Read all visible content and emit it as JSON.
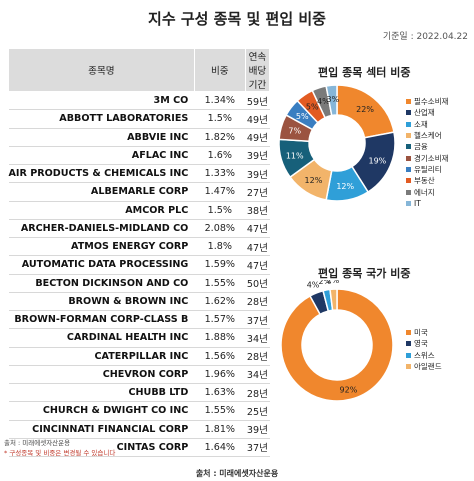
{
  "title": "지수 구성 종목 및 편입 비중",
  "date": "기준일 : 2022.04.22",
  "table": {
    "headers": {
      "name": "종목명",
      "weight": "비중",
      "years_line1": "연속",
      "years_line2": "배당 기간"
    },
    "rows": [
      {
        "name": "3M CO",
        "weight": "1.34%",
        "years": "59년"
      },
      {
        "name": "ABBOTT LABORATORIES",
        "weight": "1.5%",
        "years": "49년"
      },
      {
        "name": "ABBVIE INC",
        "weight": "1.82%",
        "years": "49년"
      },
      {
        "name": "AFLAC INC",
        "weight": "1.6%",
        "years": "39년"
      },
      {
        "name": "AIR PRODUCTS & CHEMICALS INC",
        "weight": "1.33%",
        "years": "39년"
      },
      {
        "name": "ALBEMARLE CORP",
        "weight": "1.47%",
        "years": "27년"
      },
      {
        "name": "AMCOR PLC",
        "weight": "1.5%",
        "years": "38년"
      },
      {
        "name": "ARCHER-DANIELS-MIDLAND CO",
        "weight": "2.08%",
        "years": "47년"
      },
      {
        "name": "ATMOS ENERGY CORP",
        "weight": "1.8%",
        "years": "47년"
      },
      {
        "name": "AUTOMATIC DATA PROCESSING",
        "weight": "1.59%",
        "years": "47년"
      },
      {
        "name": "BECTON DICKINSON AND CO",
        "weight": "1.55%",
        "years": "50년"
      },
      {
        "name": "BROWN & BROWN INC",
        "weight": "1.62%",
        "years": "28년"
      },
      {
        "name": "BROWN-FORMAN CORP-CLASS B",
        "weight": "1.57%",
        "years": "37년"
      },
      {
        "name": "CARDINAL HEALTH INC",
        "weight": "1.88%",
        "years": "34년"
      },
      {
        "name": "CATERPILLAR INC",
        "weight": "1.56%",
        "years": "28년"
      },
      {
        "name": "CHEVRON CORP",
        "weight": "1.96%",
        "years": "34년"
      },
      {
        "name": "CHUBB LTD",
        "weight": "1.63%",
        "years": "28년"
      },
      {
        "name": "CHURCH & DWIGHT CO INC",
        "weight": "1.55%",
        "years": "25년"
      },
      {
        "name": "CINCINNATI FINANCIAL CORP",
        "weight": "1.81%",
        "years": "39년"
      },
      {
        "name": "CINTAS CORP",
        "weight": "1.64%",
        "years": "37년"
      }
    ]
  },
  "chart_data": [
    {
      "type": "pie",
      "style": "donut",
      "title": "편입 종목 섹터 비중",
      "categories": [
        "필수소비재",
        "산업재",
        "소재",
        "헬스케어",
        "금융",
        "경기소비재",
        "유틸리티",
        "부동산",
        "에너지",
        "IT"
      ],
      "values": [
        22,
        19,
        12,
        12,
        11,
        7,
        5,
        5,
        4,
        3
      ],
      "labels": [
        "22%",
        "19%",
        "12%",
        "12%",
        "11%",
        "7%",
        "5%",
        "5%",
        "4%",
        "3%"
      ],
      "colors": [
        "#f0872d",
        "#1f3864",
        "#2f9fd8",
        "#f2b46a",
        "#17607a",
        "#9b5340",
        "#3a7ec1",
        "#e25b22",
        "#7a7a7a",
        "#86b6d8"
      ],
      "legend": "right"
    },
    {
      "type": "pie",
      "style": "donut",
      "title": "편입 종목 국가 비중",
      "categories": [
        "미국",
        "영국",
        "스위스",
        "아일랜드"
      ],
      "values": [
        92,
        4,
        2,
        2
      ],
      "labels": [
        "92%",
        "4%",
        "2%",
        "2%"
      ],
      "colors": [
        "#f0872d",
        "#1f3864",
        "#2f9fd8",
        "#f2b46a"
      ],
      "legend": "right"
    }
  ],
  "source_small": "출처 : 미래에셋자산운용",
  "note": "* 구성종목 및 비중은 변경될 수 있습니다",
  "source_bottom": "출처 : 미래에셋자산운용"
}
